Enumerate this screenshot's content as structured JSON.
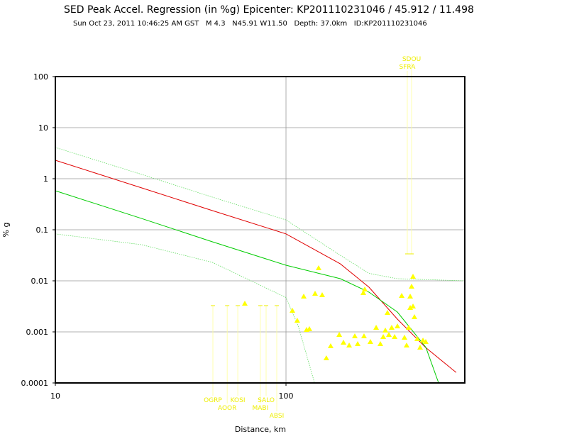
{
  "chart_data": {
    "type": "scatter",
    "title": "SED Peak Accel. Regression (in %g) Epicenter: KP201110231046 / 45.912 / 11.498",
    "subtitle": "Sun Oct 23, 2011 10:46:25 AM GST   M 4.3   N45.91 W11.50   Depth: 37.0km   ID:KP201110231046",
    "x_label": "Distance, km",
    "y_label": "% g",
    "log_x": true,
    "log_y": true,
    "grid": true,
    "xlim": [
      10,
      596
    ],
    "ylim": [
      0.0001,
      100
    ],
    "xticks": [
      10,
      100
    ],
    "yticks": [
      0.0001,
      0.001,
      0.01,
      0.1,
      1,
      10,
      100
    ],
    "color": "#ffff00",
    "x": [
      138.5,
      106.6,
      119.4,
      133.7,
      143.5,
      111.9,
      122.8,
      126.3,
      149.6,
      156.2,
      170.2,
      177.5,
      187.9,
      198.8,
      204.6,
      216.4,
      219.6,
      217.9,
      232.2,
      246,
      256.5,
      269.6,
      275.4,
      287.3,
      295.8,
      304.2,
      317.5,
      326.4,
      333.4,
      340.4,
      345.5,
      350.4,
      355.4,
      345.5,
      355.4,
      360.5,
      370.7,
      381.5,
      392.6,
      403.7,
      279.4,
      264,
      66.3
    ],
    "values": [
      0.0178,
      0.00261,
      0.00495,
      0.00562,
      0.00528,
      0.00167,
      0.0011,
      0.00114,
      0.000306,
      0.000527,
      0.00088,
      0.00062,
      0.000545,
      0.000826,
      0.00058,
      0.0058,
      0.0068,
      0.000826,
      0.00064,
      0.00121,
      0.00058,
      0.00107,
      0.00237,
      0.00121,
      0.0008,
      0.00129,
      0.0051,
      0.000774,
      0.000545,
      0.00121,
      0.00297,
      0.00774,
      0.0121,
      0.00495,
      0.00316,
      0.00196,
      0.000726,
      0.000495,
      0.00068,
      0.00064,
      0.00088,
      0.0008,
      0.0036
    ],
    "curves": [
      {
        "color": "#e00000",
        "style": "solid",
        "x": [
          10,
          23.7,
          48,
          100,
          172,
          229,
          304,
          404,
          547
        ],
        "values": [
          2.3,
          0.66,
          0.237,
          0.083,
          0.0215,
          0.0075,
          0.00178,
          0.00049,
          0.00016
        ]
      },
      {
        "color": "#00cc00",
        "style": "solid",
        "x": [
          10,
          23.7,
          48,
          100,
          172,
          229,
          304,
          404,
          459
        ],
        "values": [
          0.58,
          0.166,
          0.058,
          0.0202,
          0.011,
          0.006,
          0.00245,
          0.0005,
          0.0001
        ]
      },
      {
        "color": "#66dd66",
        "style": "dotted",
        "x": [
          10,
          23.7,
          48,
          100,
          172,
          229,
          304,
          596
        ],
        "values": [
          4.1,
          1.21,
          0.435,
          0.156,
          0.0316,
          0.014,
          0.011,
          0.01
        ]
      },
      {
        "color": "#66dd66",
        "style": "dotted",
        "x": [
          10,
          23.7,
          48,
          100,
          113,
          133
        ],
        "values": [
          0.083,
          0.051,
          0.023,
          0.0047,
          0.0013,
          0.0001
        ]
      }
    ],
    "stations": [
      {
        "label": "OGRP",
        "x": 48.2,
        "y": 0.00327
      },
      {
        "label": "AOOR",
        "x": 55.6,
        "y": 0.00327
      },
      {
        "label": "KOSI",
        "x": 61.8,
        "y": 0.00327
      },
      {
        "label": "MABI",
        "x": 77.4,
        "y": 0.00327
      },
      {
        "label": "SALO",
        "x": 82.0,
        "y": 0.00327
      },
      {
        "label": "ABSI",
        "x": 91.2,
        "y": 0.00327
      },
      {
        "label": "SFRA",
        "x": 335.7,
        "y": 0.0337
      },
      {
        "label": "SDOU",
        "x": 350.4,
        "y": 0.0337
      }
    ]
  }
}
